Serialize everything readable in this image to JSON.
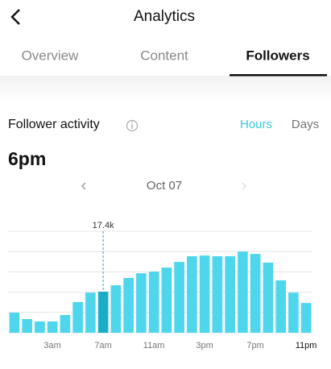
{
  "header": {
    "title": "Analytics"
  },
  "tabs": [
    "Overview",
    "Content",
    "Followers"
  ],
  "section": {
    "title": "Follower activity",
    "toggle": [
      "Hours",
      "Days"
    ]
  },
  "selected_time": "6pm",
  "date": "Oct 07",
  "chart_data": {
    "type": "bar",
    "categories": [
      null,
      null,
      null,
      "3am",
      null,
      null,
      null,
      "7am",
      null,
      null,
      null,
      "11am",
      null,
      null,
      null,
      "3pm",
      null,
      null,
      null,
      "7pm",
      null,
      null,
      null,
      "11pm"
    ],
    "values": [
      8500,
      5800,
      4800,
      4800,
      7500,
      13000,
      17000,
      17400,
      20100,
      23200,
      25200,
      25900,
      27600,
      30000,
      32400,
      32700,
      32400,
      32400,
      34400,
      33400,
      29700,
      22200,
      17000,
      12600
    ],
    "value_labels": [
      null,
      null,
      null,
      null,
      null,
      null,
      null,
      "17.4k",
      null,
      null,
      null,
      null,
      null,
      null,
      null,
      null,
      null,
      null,
      null,
      null,
      null,
      null,
      null,
      null
    ],
    "color": "#4dd6ec",
    "highlight_color": "#17aec6",
    "highlight_category": "7am",
    "ylim": [
      0,
      43000
    ],
    "yticks": [
      0,
      8600,
      17200,
      25800,
      34400,
      43000
    ],
    "grid": true
  }
}
